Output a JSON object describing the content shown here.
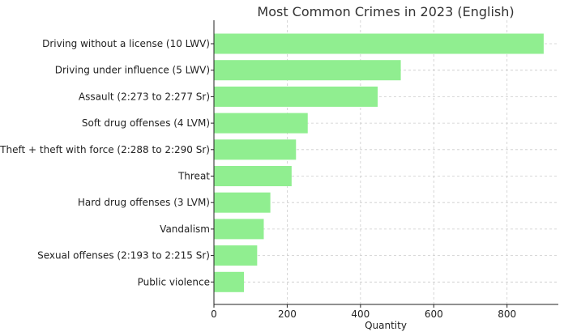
{
  "chart_data": {
    "type": "bar",
    "orientation": "horizontal",
    "title": "Most Common Crimes in 2023 (English)",
    "xlabel": "Quantity",
    "ylabel": "",
    "xlim": [
      0,
      940
    ],
    "xticks": [
      0,
      200,
      400,
      600,
      800
    ],
    "grid": true,
    "bar_color": "#90EE90",
    "categories": [
      "Driving without a license (10 LWV)",
      "Driving under influence (5 LWV)",
      "Assault (2:273 to 2:277 Sr)",
      "Soft drug offenses (4 LVM)",
      "Theft + theft with force (2:288 to 2:290 Sr)",
      "Threat",
      "Hard drug offenses (3 LVM)",
      "Vandalism",
      "Sexual offenses (2:193 to 2:215 Sr)",
      "Public violence"
    ],
    "values": [
      900,
      510,
      447,
      256,
      224,
      212,
      154,
      136,
      118,
      82
    ]
  }
}
